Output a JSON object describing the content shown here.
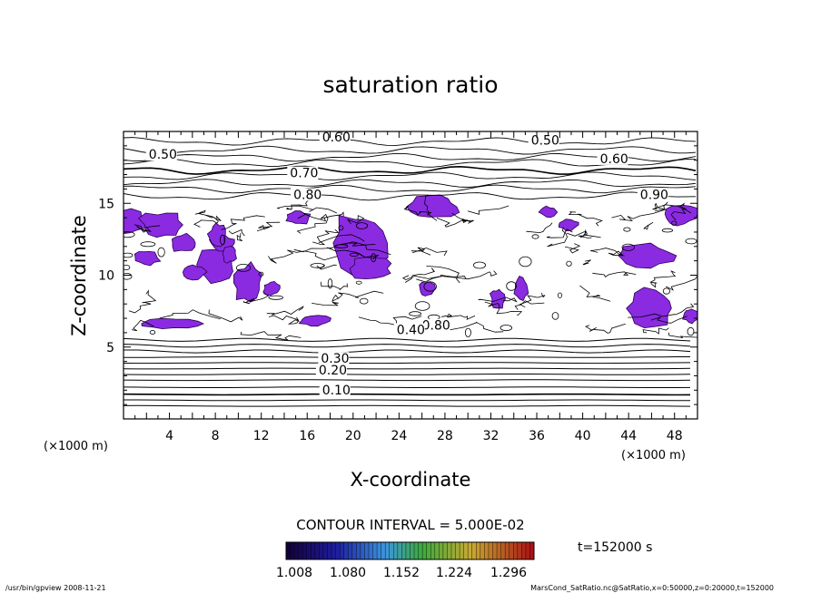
{
  "chart_data": {
    "type": "contour",
    "title": "saturation ratio",
    "xlabel": "X-coordinate",
    "ylabel": "Z-coordinate",
    "x_unit": "(×1000 m)",
    "y_unit": "(×1000 m)",
    "xlim": [
      0,
      50
    ],
    "ylim": [
      0,
      20
    ],
    "xticks": [
      4,
      8,
      12,
      16,
      20,
      24,
      28,
      32,
      36,
      40,
      44,
      48
    ],
    "yticks": [
      5,
      10,
      15
    ],
    "contour_interval_text": "CONTOUR INTERVAL = 5.000E-02",
    "time_text": "t=152000 s",
    "colorbar_labels": [
      "1.008",
      "1.080",
      "1.152",
      "1.224",
      "1.296"
    ],
    "colorbar_range": [
      1.0,
      1.3
    ],
    "shade_color": "#8a2be2",
    "contour_labels": [
      {
        "text": "0.60",
        "x": 17.3,
        "z": 19.3
      },
      {
        "text": "0.50",
        "x": 35.5,
        "z": 19.1
      },
      {
        "text": "0.50",
        "x": 2.2,
        "z": 18.1
      },
      {
        "text": "0.60",
        "x": 41.5,
        "z": 17.8
      },
      {
        "text": "0.70",
        "x": 14.5,
        "z": 16.8
      },
      {
        "text": "0.80",
        "x": 14.8,
        "z": 15.3
      },
      {
        "text": "0.90",
        "x": 45.0,
        "z": 15.3
      },
      {
        "text": "0.80",
        "x": 26.0,
        "z": 6.2
      },
      {
        "text": "0.40",
        "x": 23.8,
        "z": 5.9
      },
      {
        "text": "0.30",
        "x": 17.2,
        "z": 3.9
      },
      {
        "text": "0.20",
        "x": 17.0,
        "z": 3.1
      },
      {
        "text": "0.10",
        "x": 17.3,
        "z": 1.7
      }
    ],
    "level_lines_z": [
      0.9,
      1.3,
      1.7,
      2.2,
      2.7,
      3.1,
      3.5,
      3.9,
      4.3,
      4.7,
      5.1,
      5.5
    ],
    "footer_left": "/usr/bin/gpview   2008-11-21",
    "footer_right": "MarsCond_SatRatio.nc@SatRatio,x=0:50000,z=0:20000,t=152000"
  }
}
